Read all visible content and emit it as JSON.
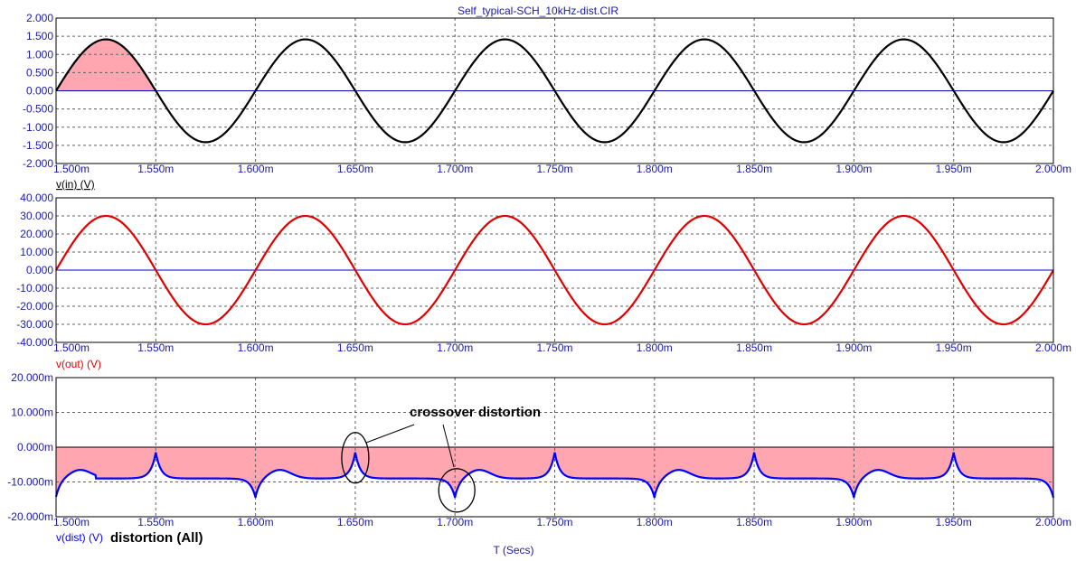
{
  "chart_data": [
    {
      "type": "line",
      "title": "Self_typical-SCH_10kHz-dist.CIR",
      "xlabel": "",
      "ylabel": "v(in) (V)",
      "xlim": [
        1.5,
        2.0
      ],
      "ylim": [
        -2.0,
        2.0
      ],
      "x_unit": "ms",
      "y_ticks": [
        "2.000",
        "1.500",
        "1.000",
        "0.500",
        "0.000",
        "-0.500",
        "-1.000",
        "-1.500",
        "-2.000"
      ],
      "x_ticks": [
        "1.500m",
        "1.550m",
        "1.600m",
        "1.650m",
        "1.700m",
        "1.750m",
        "1.800m",
        "1.850m",
        "1.900m",
        "1.950m",
        "2.000m"
      ],
      "series": [
        {
          "color": "#000000",
          "waveform": "sine",
          "amplitude": 1.414,
          "frequency_khz": 10,
          "phase_start_ms": 1.5,
          "fill_first_half_cycle": true,
          "fill_color": "#ffa6b0"
        }
      ],
      "zero_line_color": "#0000c0",
      "grid": true
    },
    {
      "type": "line",
      "xlabel": "",
      "ylabel": "v(out) (V)",
      "xlim": [
        1.5,
        2.0
      ],
      "ylim": [
        -40.0,
        40.0
      ],
      "x_unit": "ms",
      "y_ticks": [
        "40.000",
        "30.000",
        "20.000",
        "10.000",
        "0.000",
        "-10.000",
        "-20.000",
        "-30.000",
        "-40.000"
      ],
      "x_ticks": [
        "1.500m",
        "1.550m",
        "1.600m",
        "1.650m",
        "1.700m",
        "1.750m",
        "1.800m",
        "1.850m",
        "1.900m",
        "1.950m",
        "2.000m"
      ],
      "series": [
        {
          "color": "#e00000",
          "waveform": "sine",
          "amplitude": 30.0,
          "frequency_khz": 10,
          "phase_start_ms": 1.5
        }
      ],
      "zero_line_color": "#0000c0",
      "grid": true
    },
    {
      "type": "area",
      "xlabel": "T (Secs)",
      "ylabel": "v(dist) (V)",
      "xlim": [
        1.5,
        2.0
      ],
      "ylim": [
        -20.0,
        20.0
      ],
      "y_unit": "mV",
      "x_unit": "ms",
      "y_ticks": [
        "20.000m",
        "10.000m",
        "0.000m",
        "-10.000m",
        "-20.000m"
      ],
      "x_ticks": [
        "1.500m",
        "1.550m",
        "1.600m",
        "1.650m",
        "1.700m",
        "1.750m",
        "1.800m",
        "1.850m",
        "1.900m",
        "1.950m",
        "2.000m"
      ],
      "series": [
        {
          "color": "#0000ff",
          "fill_color": "#ffa6b0",
          "baseline_mv": -9.0,
          "upward_spikes_ms": [
            1.55,
            1.65,
            1.75,
            1.85,
            1.95
          ],
          "upward_spike_peak_mv": -1.5,
          "downward_spikes_ms": [
            1.6,
            1.7,
            1.8,
            1.9,
            2.0
          ],
          "downward_spike_peak_mv": -14.5,
          "initial_value_mv": -14.5
        }
      ],
      "annotations": {
        "label": "crossover distortion",
        "circled_points_ms": [
          1.65,
          1.7
        ]
      },
      "caption": "distortion (All)",
      "grid": true
    }
  ]
}
